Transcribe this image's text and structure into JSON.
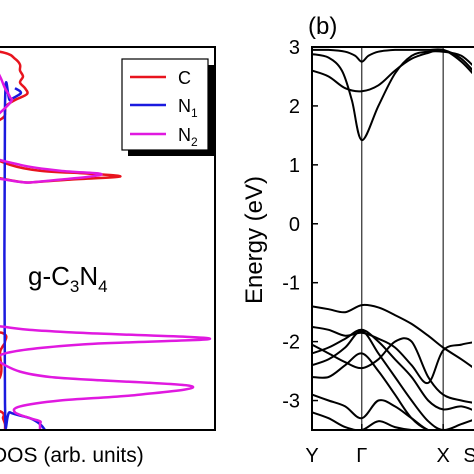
{
  "chart_data": [
    {
      "type": "line",
      "panel_label": "",
      "sample_label": {
        "prefix": "g-C",
        "sub1": "3",
        "mid": "N",
        "sub2": "4"
      },
      "xlabel": "DOS (arb. units)",
      "ylabel": "",
      "ylim": [
        -3.5,
        3
      ],
      "grid": false,
      "legend_position": "top-right",
      "legend": [
        {
          "name": "C",
          "sub": "",
          "color": "#e8141e"
        },
        {
          "name": "N",
          "sub": "1",
          "color": "#1a1adf"
        },
        {
          "name": "N",
          "sub": "2",
          "color": "#e019e0"
        }
      ],
      "series": [
        {
          "name": "C",
          "color": "#e8141e",
          "energy": [
            3.0,
            2.9,
            2.8,
            2.7,
            2.6,
            2.5,
            2.4,
            2.3,
            2.2,
            2.1,
            2.0,
            1.9,
            1.8,
            1.6,
            1.4,
            1.2,
            1.0,
            0.9,
            0.85,
            0.8,
            0.75,
            0.7,
            0.6,
            -1.7,
            -1.85,
            -2.0,
            -2.1,
            -2.2,
            -2.6,
            -3.0,
            -3.2,
            -3.3,
            -3.4,
            -3.5
          ],
          "dos": [
            -3,
            0.5,
            1.5,
            2.0,
            2.0,
            2.3,
            2.0,
            2.5,
            2.7,
            1.5,
            0.6,
            0.5,
            0.3,
            -1.5,
            -1.5,
            -1.5,
            1.0,
            4.0,
            9.0,
            12.0,
            7.0,
            3.0,
            -4,
            -4,
            0.2,
            0.5,
            0.2,
            0,
            0,
            -2.0,
            0.2,
            0.3,
            0.5,
            0.5
          ]
        },
        {
          "name": "N1",
          "color": "#1a1adf",
          "energy": [
            2.3,
            2.25,
            2.2,
            2.1,
            2.0,
            -3.05,
            -3.2,
            -3.3,
            -3.4,
            -3.5
          ],
          "dos": [
            1.5,
            2.0,
            2.0,
            1.0,
            0.5,
            0.5,
            1.0,
            3.0,
            4.0,
            4.5
          ]
        },
        {
          "name": "N2",
          "color": "#e019e0",
          "energy": [
            3.0,
            2.8,
            2.5,
            2.3,
            2.15,
            2.05,
            1.6,
            1.2,
            1.0,
            0.9,
            0.85,
            0.8,
            0.75,
            0.7,
            0.6,
            -1.5,
            -1.75,
            -1.85,
            -1.95,
            -2.05,
            -2.2,
            -2.4,
            -2.6,
            -2.75,
            -2.9,
            -3.0,
            -3.1,
            -3.2,
            -3.3,
            -3.35,
            -3.4,
            -3.5
          ],
          "dos": [
            -3,
            -1.0,
            0.0,
            0.5,
            1.0,
            1.0,
            -1.5,
            -1.5,
            2.0,
            6.0,
            10.0,
            9.0,
            6.0,
            3.0,
            -4,
            -4,
            0.5,
            8.0,
            21.0,
            8.0,
            0.5,
            0.5,
            5.0,
            19.0,
            14.0,
            6.0,
            2.0,
            1.5,
            3.0,
            4.0,
            4.0,
            4.0
          ]
        }
      ]
    },
    {
      "type": "line",
      "panel_label": "(b)",
      "xlabel": "",
      "ylabel": "Energy (eV)",
      "ylim": [
        -3.5,
        3
      ],
      "yticks": [
        "3",
        "2",
        "1",
        "0",
        "-1",
        "-2",
        "-3"
      ],
      "ytick_values": [
        3,
        2,
        1,
        0,
        -1,
        -2,
        -3
      ],
      "grid": false,
      "kpoints": [
        "Y",
        "Γ",
        "X",
        "S"
      ],
      "kpoint_positions": [
        0,
        0.3,
        0.79,
        1.0
      ],
      "band_color": "#000000",
      "series": [
        {
          "k": [
            0,
            0.1,
            0.18,
            0.24,
            0.3,
            0.4,
            0.5,
            0.6,
            0.7,
            0.79,
            0.9,
            1.0
          ],
          "energy": [
            2.88,
            2.82,
            2.6,
            2.1,
            1.42,
            2.0,
            2.55,
            2.85,
            2.92,
            2.92,
            2.85,
            2.6
          ]
        },
        {
          "k": [
            0,
            0.1,
            0.2,
            0.3,
            0.4,
            0.5,
            0.6,
            0.7,
            0.79,
            0.9,
            1.0
          ],
          "energy": [
            2.6,
            2.5,
            2.3,
            2.25,
            2.35,
            2.6,
            2.8,
            2.9,
            2.95,
            2.75,
            2.45
          ]
        },
        {
          "k": [
            0,
            0.1,
            0.2,
            0.26,
            0.3,
            0.34,
            0.4,
            0.5,
            0.6,
            0.7,
            0.79,
            0.9,
            1.0
          ],
          "energy": [
            2.95,
            2.95,
            2.92,
            2.85,
            2.75,
            2.85,
            2.92,
            2.95,
            2.95,
            2.95,
            2.95,
            2.8,
            2.5
          ]
        },
        {
          "k": [
            0,
            0.1,
            0.2,
            0.3,
            0.4,
            0.5,
            0.6,
            0.7,
            0.79,
            0.9,
            1.0
          ],
          "energy": [
            -1.4,
            -1.45,
            -1.5,
            -1.38,
            -1.42,
            -1.55,
            -1.7,
            -1.9,
            -2.1,
            -2.3,
            -2.5
          ]
        },
        {
          "k": [
            0,
            0.1,
            0.2,
            0.3,
            0.4,
            0.5,
            0.6,
            0.7,
            0.79,
            0.9,
            1.0
          ],
          "energy": [
            -1.75,
            -1.8,
            -1.9,
            -1.85,
            -1.95,
            -2.1,
            -2.4,
            -2.7,
            -2.15,
            -2.05,
            -2.0
          ]
        },
        {
          "k": [
            0,
            0.1,
            0.2,
            0.3,
            0.4,
            0.5,
            0.6,
            0.7,
            0.79,
            0.9,
            1.0
          ],
          "energy": [
            -2.2,
            -2.1,
            -1.95,
            -1.8,
            -2.0,
            -2.3,
            -2.6,
            -3.0,
            -3.15,
            -3.1,
            -3.2
          ]
        },
        {
          "k": [
            0,
            0.1,
            0.2,
            0.3,
            0.4,
            0.5,
            0.6,
            0.7,
            0.79,
            0.9,
            1.0
          ],
          "energy": [
            -2.4,
            -2.3,
            -2.1,
            -1.82,
            -2.2,
            -2.6,
            -3.0,
            -3.35,
            -3.5,
            -3.4,
            -3.3
          ]
        },
        {
          "k": [
            0,
            0.1,
            0.2,
            0.3,
            0.4,
            0.5,
            0.6,
            0.7,
            0.79,
            0.9,
            1.0
          ],
          "energy": [
            -2.6,
            -2.6,
            -2.4,
            -2.2,
            -2.5,
            -2.9,
            -3.3,
            -3.5,
            -3.5,
            -3.5,
            -3.5
          ]
        },
        {
          "k": [
            0,
            0.1,
            0.2,
            0.3,
            0.4,
            0.5,
            0.6,
            0.7,
            0.79,
            0.9,
            1.0
          ],
          "energy": [
            -2.9,
            -3.0,
            -3.1,
            -3.3,
            -3.0,
            -3.1,
            -3.3,
            -3.5,
            -3.5,
            -3.5,
            -3.5
          ]
        },
        {
          "k": [
            0,
            0.1,
            0.2,
            0.3,
            0.4,
            0.5,
            0.6,
            0.7,
            0.79,
            0.9,
            1.0
          ],
          "energy": [
            -3.2,
            -3.3,
            -3.45,
            -3.5,
            -3.35,
            -3.45,
            -3.5,
            -3.5,
            -3.5,
            -3.5,
            -3.5
          ]
        },
        {
          "k": [
            0,
            0.1,
            0.2,
            0.3,
            0.4,
            0.5,
            0.6,
            0.7,
            0.79,
            0.9,
            1.0
          ],
          "energy": [
            -2.05,
            -2.2,
            -2.35,
            -2.45,
            -2.3,
            -2.0,
            -2.0,
            -2.6,
            -2.9,
            -3.0,
            -3.05
          ]
        }
      ]
    }
  ]
}
